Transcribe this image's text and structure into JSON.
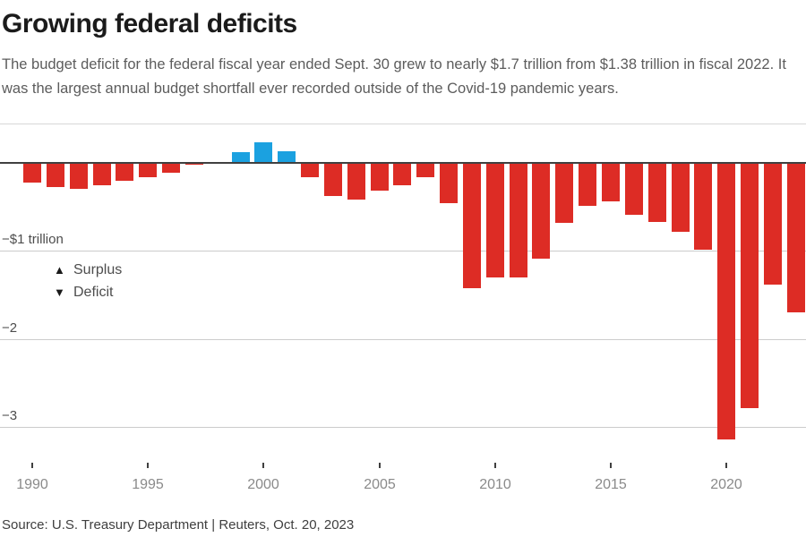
{
  "header": {
    "title": "Growing federal deficits",
    "subtitle": "The budget deficit for the federal fiscal year ended Sept. 30 grew to nearly $1.7 trillion from $1.38 trillion in fiscal 2022. It was the largest annual budget shortfall ever recorded outside of the Covid-19 pandemic years."
  },
  "legend": {
    "surplus_label": "Surplus",
    "deficit_label": "Deficit"
  },
  "icons": {
    "surplus_triangle": "▲",
    "deficit_triangle": "▼"
  },
  "footer": {
    "source": "Source: U.S. Treasury Department | Reuters, Oct. 20, 2023"
  },
  "colors": {
    "surplus_blue": "#1ba1e0",
    "deficit_red": "#dd2c25",
    "zero_line": "#404040",
    "gridline": "#cccccc",
    "top_border": "#d8d8d8",
    "tick_mark": "#404040",
    "year_label": "#8a8a8a",
    "axis_label": "#4d4d4d"
  },
  "chart_data": {
    "type": "bar",
    "title": "Growing federal deficits",
    "xlabel": "",
    "ylabel": "",
    "unit": "trillions of U.S. dollars",
    "baseline": 0,
    "grid": "horizontal",
    "legend_position": "inside-left",
    "ylim": [
      -3.4,
      0.45
    ],
    "x": [
      1990,
      1991,
      1992,
      1993,
      1994,
      1995,
      1996,
      1997,
      1998,
      1999,
      2000,
      2001,
      2002,
      2003,
      2004,
      2005,
      2006,
      2007,
      2008,
      2009,
      2010,
      2011,
      2012,
      2013,
      2014,
      2015,
      2016,
      2017,
      2018,
      2019,
      2020,
      2021,
      2022,
      2023
    ],
    "values": [
      -0.221,
      -0.269,
      -0.29,
      -0.255,
      -0.203,
      -0.164,
      -0.107,
      -0.022,
      0.0,
      0.126,
      0.236,
      0.128,
      -0.158,
      -0.378,
      -0.413,
      -0.318,
      -0.248,
      -0.161,
      -0.459,
      -1.413,
      -1.294,
      -1.3,
      -1.087,
      -0.679,
      -0.485,
      -0.438,
      -0.585,
      -0.665,
      -0.779,
      -0.984,
      -3.132,
      -2.772,
      -1.375,
      -1.695
    ],
    "positive_label": "Surplus",
    "negative_label": "Deficit",
    "xticks": [
      1990,
      1995,
      2000,
      2005,
      2010,
      2015,
      2020
    ],
    "yticks": [
      {
        "value": -1,
        "label": "−$1 trillion"
      },
      {
        "value": -2,
        "label": "−2"
      },
      {
        "value": -3,
        "label": "−3"
      }
    ]
  }
}
